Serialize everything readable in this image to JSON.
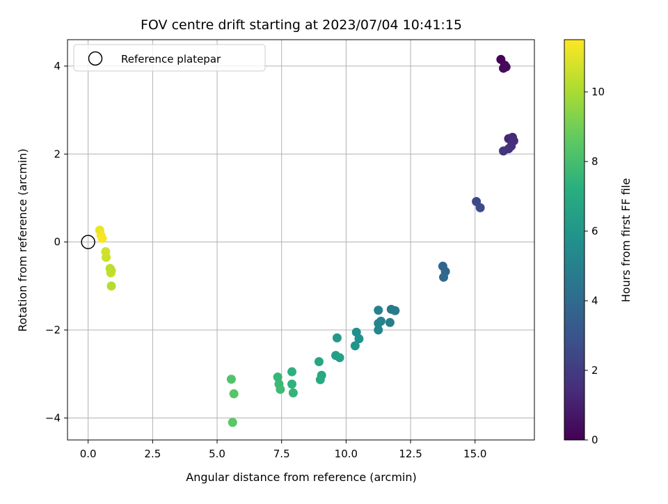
{
  "chart_data": {
    "type": "scatter",
    "title": "FOV centre drift starting at 2023/07/04 10:41:15",
    "xlabel": "Angular distance from reference (arcmin)",
    "ylabel": "Rotation from reference (arcmin)",
    "xlim": [
      -0.8,
      17.3
    ],
    "ylim": [
      -4.5,
      4.6
    ],
    "xticks": [
      0.0,
      2.5,
      5.0,
      7.5,
      10.0,
      12.5,
      15.0
    ],
    "xtick_labels": [
      "0.0",
      "2.5",
      "5.0",
      "7.5",
      "10.0",
      "12.5",
      "15.0"
    ],
    "yticks": [
      4,
      2,
      0,
      -2,
      -4
    ],
    "ytick_labels": [
      "4",
      "2",
      "0",
      "−2",
      "−4"
    ],
    "grid": true,
    "legend": {
      "placement": "upper-left",
      "entries": [
        "Reference platepar"
      ]
    },
    "reference_point": {
      "x": 0.0,
      "y": 0.0,
      "label": "Reference platepar"
    },
    "colorbar": {
      "label": "Hours from first FF file",
      "range": [
        0,
        11.5
      ],
      "ticks": [
        0,
        2,
        4,
        6,
        8,
        10
      ],
      "tick_labels": [
        "0",
        "2",
        "4",
        "6",
        "8",
        "10"
      ],
      "colormap": "viridis"
    },
    "points": [
      {
        "x": 16.0,
        "y": 4.15,
        "hours": 0.1
      },
      {
        "x": 16.15,
        "y": 4.02,
        "hours": 0.2
      },
      {
        "x": 16.1,
        "y": 3.95,
        "hours": 0.3
      },
      {
        "x": 16.2,
        "y": 3.98,
        "hours": 0.35
      },
      {
        "x": 16.3,
        "y": 2.35,
        "hours": 1.2
      },
      {
        "x": 16.45,
        "y": 2.38,
        "hours": 1.3
      },
      {
        "x": 16.5,
        "y": 2.3,
        "hours": 1.4
      },
      {
        "x": 16.4,
        "y": 2.18,
        "hours": 1.5
      },
      {
        "x": 16.3,
        "y": 2.12,
        "hours": 1.6
      },
      {
        "x": 16.1,
        "y": 2.07,
        "hours": 1.7
      },
      {
        "x": 15.05,
        "y": 0.92,
        "hours": 2.5
      },
      {
        "x": 15.2,
        "y": 0.78,
        "hours": 2.6
      },
      {
        "x": 13.75,
        "y": -0.55,
        "hours": 3.7
      },
      {
        "x": 13.85,
        "y": -0.67,
        "hours": 3.8
      },
      {
        "x": 13.78,
        "y": -0.8,
        "hours": 3.9
      },
      {
        "x": 11.75,
        "y": -1.53,
        "hours": 4.6
      },
      {
        "x": 11.9,
        "y": -1.56,
        "hours": 4.7
      },
      {
        "x": 11.7,
        "y": -1.83,
        "hours": 4.8
      },
      {
        "x": 11.25,
        "y": -1.55,
        "hours": 5.0
      },
      {
        "x": 11.35,
        "y": -1.8,
        "hours": 5.1
      },
      {
        "x": 11.25,
        "y": -1.85,
        "hours": 5.2
      },
      {
        "x": 11.25,
        "y": -2.0,
        "hours": 5.3
      },
      {
        "x": 10.4,
        "y": -2.05,
        "hours": 5.7
      },
      {
        "x": 10.5,
        "y": -2.2,
        "hours": 5.8
      },
      {
        "x": 10.35,
        "y": -2.36,
        "hours": 5.9
      },
      {
        "x": 9.65,
        "y": -2.18,
        "hours": 6.2
      },
      {
        "x": 9.6,
        "y": -2.58,
        "hours": 6.4
      },
      {
        "x": 9.75,
        "y": -2.63,
        "hours": 6.5
      },
      {
        "x": 8.95,
        "y": -2.72,
        "hours": 6.8
      },
      {
        "x": 9.05,
        "y": -3.03,
        "hours": 6.9
      },
      {
        "x": 9.0,
        "y": -3.13,
        "hours": 7.0
      },
      {
        "x": 7.9,
        "y": -2.95,
        "hours": 7.3
      },
      {
        "x": 7.9,
        "y": -3.23,
        "hours": 7.4
      },
      {
        "x": 7.95,
        "y": -3.43,
        "hours": 7.5
      },
      {
        "x": 7.35,
        "y": -3.07,
        "hours": 7.6
      },
      {
        "x": 7.4,
        "y": -3.23,
        "hours": 7.7
      },
      {
        "x": 7.45,
        "y": -3.35,
        "hours": 7.8
      },
      {
        "x": 5.55,
        "y": -3.12,
        "hours": 8.3
      },
      {
        "x": 5.65,
        "y": -3.45,
        "hours": 8.4
      },
      {
        "x": 5.6,
        "y": -4.1,
        "hours": 8.5
      },
      {
        "x": 0.9,
        "y": -1.0,
        "hours": 10.2
      },
      {
        "x": 0.85,
        "y": -0.6,
        "hours": 10.3
      },
      {
        "x": 0.9,
        "y": -0.65,
        "hours": 10.35
      },
      {
        "x": 0.88,
        "y": -0.7,
        "hours": 10.4
      },
      {
        "x": 0.7,
        "y": -0.35,
        "hours": 10.6
      },
      {
        "x": 0.68,
        "y": -0.22,
        "hours": 10.7
      },
      {
        "x": 0.45,
        "y": 0.27,
        "hours": 11.2
      },
      {
        "x": 0.5,
        "y": 0.15,
        "hours": 11.3
      },
      {
        "x": 0.55,
        "y": 0.08,
        "hours": 11.4
      }
    ]
  }
}
